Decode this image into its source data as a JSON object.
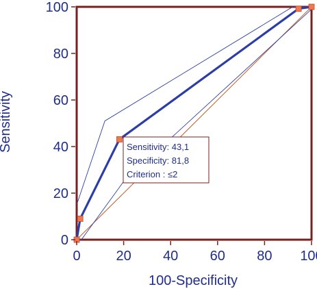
{
  "chart_data": {
    "type": "line",
    "xlabel": "100-Specificity",
    "ylabel": "Sensitivity",
    "xlim": [
      0,
      100
    ],
    "ylim": [
      0,
      100
    ],
    "x_ticks": [
      "0",
      "20",
      "40",
      "60",
      "80",
      "100"
    ],
    "y_ticks": [
      "0",
      "20",
      "40",
      "60",
      "80",
      "100"
    ],
    "grid": false,
    "series": [
      {
        "points": [
          [
            0,
            0
          ],
          [
            1.5,
            9
          ],
          [
            18.2,
            43.1
          ],
          [
            94.5,
            99.2
          ],
          [
            100,
            100
          ]
        ],
        "color": "#2b3ea8"
      }
    ],
    "ci_upper": [
      [
        0,
        15
      ],
      [
        12,
        51
      ],
      [
        92,
        100
      ],
      [
        100,
        100
      ]
    ],
    "ci_lower": [
      [
        0,
        0
      ],
      [
        2,
        0
      ],
      [
        20,
        25
      ],
      [
        100,
        99
      ]
    ],
    "reference_line": [
      [
        0,
        0
      ],
      [
        100,
        100
      ]
    ],
    "reference_color": "#c0602a",
    "marker_color": "#f07850",
    "frame_color": "#7a1f1f",
    "annotation": {
      "lines": [
        "Sensitivity: 43,1",
        "Specificity: 81,8",
        "Criterion : ≤2"
      ]
    }
  }
}
